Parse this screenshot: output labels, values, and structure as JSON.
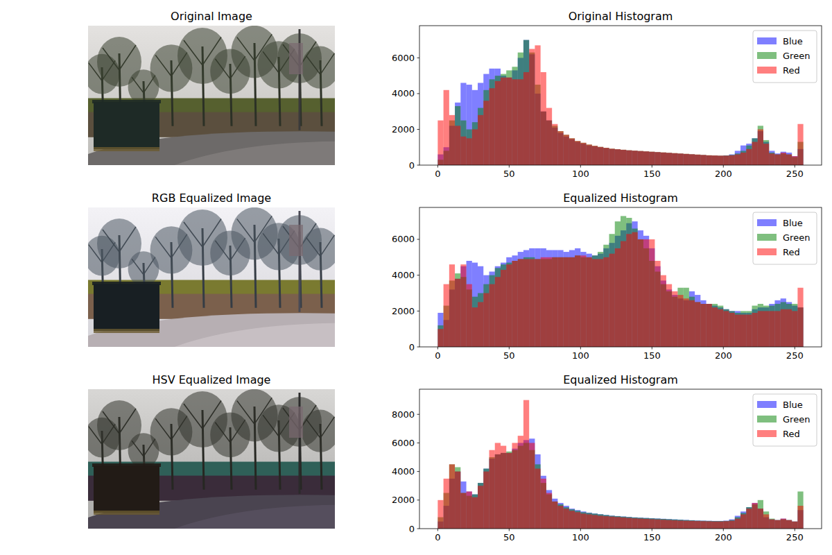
{
  "images": [
    {
      "title": "Original Image"
    },
    {
      "title": "RGB Equalized Image"
    },
    {
      "title": "HSV Equalized Image"
    }
  ],
  "chart_data": [
    {
      "type": "histogram",
      "title": "Original Histogram",
      "bins": [
        0,
        4,
        8,
        12,
        16,
        20,
        24,
        28,
        32,
        36,
        40,
        44,
        48,
        52,
        56,
        60,
        64,
        68,
        72,
        76,
        80,
        84,
        88,
        92,
        96,
        100,
        104,
        108,
        112,
        116,
        120,
        124,
        128,
        132,
        136,
        140,
        144,
        148,
        152,
        156,
        160,
        164,
        168,
        172,
        176,
        180,
        184,
        188,
        192,
        196,
        200,
        204,
        208,
        212,
        216,
        220,
        224,
        228,
        232,
        236,
        240,
        244,
        248,
        252,
        256
      ],
      "series": [
        {
          "name": "Blue",
          "color": "#0000ff",
          "values": [
            600,
            1000,
            2200,
            3500,
            4600,
            4500,
            4200,
            4600,
            5100,
            5400,
            5400,
            5000,
            4900,
            5300,
            6000,
            7000,
            6200,
            4000,
            3000,
            2500,
            2100,
            1800,
            1600,
            1450,
            1300,
            1200,
            1100,
            1050,
            1000,
            950,
            900,
            880,
            850,
            820,
            800,
            780,
            760,
            740,
            720,
            700,
            680,
            660,
            640,
            620,
            600,
            580,
            560,
            540,
            530,
            520,
            540,
            600,
            800,
            1100,
            1200,
            1500,
            1900,
            1300,
            800,
            650,
            750,
            700,
            500,
            900
          ]
        },
        {
          "name": "Green",
          "color": "#008000",
          "values": [
            300,
            800,
            2500,
            3300,
            2500,
            2000,
            2400,
            3200,
            4200,
            4800,
            5000,
            5100,
            5300,
            5500,
            6300,
            7000,
            6300,
            4500,
            3000,
            2500,
            2200,
            1900,
            1700,
            1500,
            1350,
            1250,
            1150,
            1080,
            1020,
            970,
            920,
            890,
            860,
            830,
            810,
            790,
            770,
            750,
            730,
            710,
            690,
            670,
            650,
            630,
            610,
            590,
            570,
            550,
            540,
            530,
            540,
            570,
            650,
            800,
            1100,
            1500,
            2200,
            1400,
            700,
            600,
            650,
            600,
            450,
            1300
          ]
        },
        {
          "name": "Red",
          "color": "#ff0000",
          "values": [
            2500,
            4200,
            2800,
            2200,
            1600,
            1500,
            2000,
            2800,
            3600,
            4300,
            4700,
            4900,
            4900,
            4800,
            4800,
            5200,
            6500,
            6700,
            5200,
            3200,
            2300,
            1900,
            1700,
            1500,
            1350,
            1250,
            1150,
            1080,
            1020,
            970,
            920,
            890,
            860,
            830,
            810,
            790,
            770,
            750,
            730,
            710,
            690,
            670,
            650,
            630,
            610,
            590,
            570,
            550,
            540,
            530,
            530,
            550,
            600,
            700,
            900,
            1300,
            2000,
            1200,
            650,
            600,
            700,
            600,
            500,
            2300
          ]
        }
      ],
      "xlim": [
        -12.8,
        268.8
      ],
      "ylim": [
        0,
        7800
      ],
      "xticks": [
        0,
        50,
        100,
        150,
        200,
        250
      ],
      "yticks": [
        0,
        2000,
        4000,
        6000
      ],
      "legend": "upper right"
    },
    {
      "type": "histogram",
      "title": "Equalized Histogram",
      "bins": [
        0,
        4,
        8,
        12,
        16,
        20,
        24,
        28,
        32,
        36,
        40,
        44,
        48,
        52,
        56,
        60,
        64,
        68,
        72,
        76,
        80,
        84,
        88,
        92,
        96,
        100,
        104,
        108,
        112,
        116,
        120,
        124,
        128,
        132,
        136,
        140,
        144,
        148,
        152,
        156,
        160,
        164,
        168,
        172,
        176,
        180,
        184,
        188,
        192,
        196,
        200,
        204,
        208,
        212,
        216,
        220,
        224,
        228,
        232,
        236,
        240,
        244,
        248,
        252,
        256
      ],
      "series": [
        {
          "name": "Blue",
          "color": "#0000ff",
          "values": [
            1900,
            1500,
            3200,
            3800,
            4500,
            4800,
            4700,
            4500,
            4000,
            4200,
            4500,
            4700,
            5000,
            5100,
            5300,
            5400,
            5500,
            5500,
            5500,
            5400,
            5400,
            5400,
            5300,
            5400,
            5500,
            5300,
            5200,
            5100,
            5200,
            5500,
            5800,
            6200,
            6500,
            6900,
            7000,
            6500,
            6200,
            5500,
            4500,
            3700,
            3200,
            2900,
            2700,
            2600,
            3100,
            2900,
            2600,
            2400,
            2300,
            2200,
            2100,
            2000,
            2000,
            1900,
            1900,
            2100,
            2200,
            2200,
            2400,
            2600,
            2700,
            2500,
            2300,
            2200
          ]
        },
        {
          "name": "Green",
          "color": "#008000",
          "values": [
            1200,
            2300,
            3700,
            4100,
            3900,
            3200,
            2800,
            3000,
            3500,
            4000,
            4400,
            4600,
            4700,
            4800,
            4900,
            5000,
            5000,
            4900,
            4900,
            4900,
            5000,
            5000,
            5000,
            5000,
            5100,
            5000,
            5000,
            5100,
            5300,
            5700,
            6300,
            7000,
            7300,
            7200,
            6600,
            6000,
            5500,
            4800,
            4200,
            3500,
            3100,
            2800,
            3300,
            3300,
            2800,
            2500,
            2400,
            2400,
            2400,
            2300,
            2100,
            2000,
            1900,
            2000,
            2000,
            2300,
            2400,
            2300,
            2300,
            2400,
            2500,
            2400,
            2400,
            2200
          ]
        },
        {
          "name": "Red",
          "color": "#ff0000",
          "values": [
            1000,
            3500,
            4600,
            3800,
            4600,
            3500,
            2200,
            2500,
            3000,
            3500,
            3900,
            4300,
            4600,
            4800,
            4900,
            4900,
            4900,
            4900,
            5000,
            5000,
            5000,
            5000,
            5000,
            5000,
            5100,
            5100,
            5000,
            4900,
            4900,
            5000,
            5200,
            5500,
            5900,
            6300,
            6400,
            6000,
            6000,
            6000,
            4800,
            4000,
            3500,
            3100,
            2900,
            2700,
            2600,
            2500,
            2400,
            2400,
            2200,
            2100,
            2000,
            1900,
            1800,
            1800,
            1800,
            1900,
            2000,
            2000,
            2000,
            2000,
            2100,
            2100,
            2000,
            3300
          ]
        }
      ],
      "xlim": [
        -12.8,
        268.8
      ],
      "ylim": [
        0,
        7780
      ],
      "xticks": [
        0,
        50,
        100,
        150,
        200,
        250
      ],
      "yticks": [
        0,
        2000,
        4000,
        6000
      ],
      "legend": "upper right"
    },
    {
      "type": "histogram",
      "title": "Equalized Histogram",
      "bins": [
        0,
        4,
        8,
        12,
        16,
        20,
        24,
        28,
        32,
        36,
        40,
        44,
        48,
        52,
        56,
        60,
        64,
        68,
        72,
        76,
        80,
        84,
        88,
        92,
        96,
        100,
        104,
        108,
        112,
        116,
        120,
        124,
        128,
        132,
        136,
        140,
        144,
        148,
        152,
        156,
        160,
        164,
        168,
        172,
        176,
        180,
        184,
        188,
        192,
        196,
        200,
        204,
        208,
        212,
        216,
        220,
        224,
        228,
        232,
        236,
        240,
        244,
        248,
        252,
        256
      ],
      "series": [
        {
          "name": "Blue",
          "color": "#0000ff",
          "values": [
            500,
            1600,
            3500,
            4000,
            3300,
            2600,
            2400,
            3200,
            4200,
            4900,
            5200,
            5300,
            5300,
            5600,
            6000,
            6200,
            6300,
            5200,
            3700,
            2700,
            2100,
            1800,
            1600,
            1400,
            1300,
            1200,
            1120,
            1060,
            1010,
            960,
            910,
            880,
            850,
            820,
            790,
            770,
            750,
            730,
            710,
            690,
            670,
            650,
            630,
            610,
            590,
            570,
            560,
            550,
            540,
            540,
            560,
            650,
            900,
            1200,
            1500,
            1800,
            1400,
            800,
            650,
            600,
            700,
            600,
            500,
            1300
          ]
        },
        {
          "name": "Green",
          "color": "#008000",
          "values": [
            800,
            2500,
            4500,
            4300,
            2500,
            2300,
            2400,
            3200,
            4200,
            5000,
            5200,
            5300,
            5400,
            5500,
            5800,
            6000,
            5500,
            4500,
            3200,
            2400,
            1900,
            1700,
            1500,
            1350,
            1250,
            1150,
            1100,
            1050,
            1000,
            950,
            900,
            870,
            840,
            810,
            780,
            760,
            740,
            720,
            700,
            680,
            660,
            640,
            620,
            600,
            580,
            560,
            550,
            540,
            530,
            530,
            540,
            600,
            800,
            1100,
            1500,
            1700,
            2000,
            1200,
            700,
            600,
            650,
            600,
            500,
            2600
          ]
        },
        {
          "name": "Red",
          "color": "#ff0000",
          "values": [
            2000,
            3500,
            4500,
            4000,
            2500,
            2600,
            2200,
            3000,
            4000,
            5500,
            6000,
            5800,
            5300,
            6000,
            6500,
            9000,
            6000,
            4200,
            3500,
            2500,
            1900,
            1600,
            1400,
            1250,
            1150,
            1050,
            1000,
            950,
            900,
            870,
            840,
            810,
            780,
            750,
            720,
            700,
            680,
            660,
            640,
            620,
            600,
            580,
            560,
            550,
            540,
            530,
            520,
            510,
            500,
            500,
            520,
            550,
            700,
            1000,
            1400,
            1800,
            1400,
            1000,
            650,
            600,
            700,
            600,
            500,
            1600
          ]
        }
      ],
      "xlim": [
        -12.8,
        268.8
      ],
      "ylim": [
        0,
        9760
      ],
      "xticks": [
        0,
        50,
        100,
        150,
        200,
        250
      ],
      "yticks": [
        0,
        2000,
        4000,
        6000,
        8000
      ],
      "legend": "upper right"
    }
  ]
}
